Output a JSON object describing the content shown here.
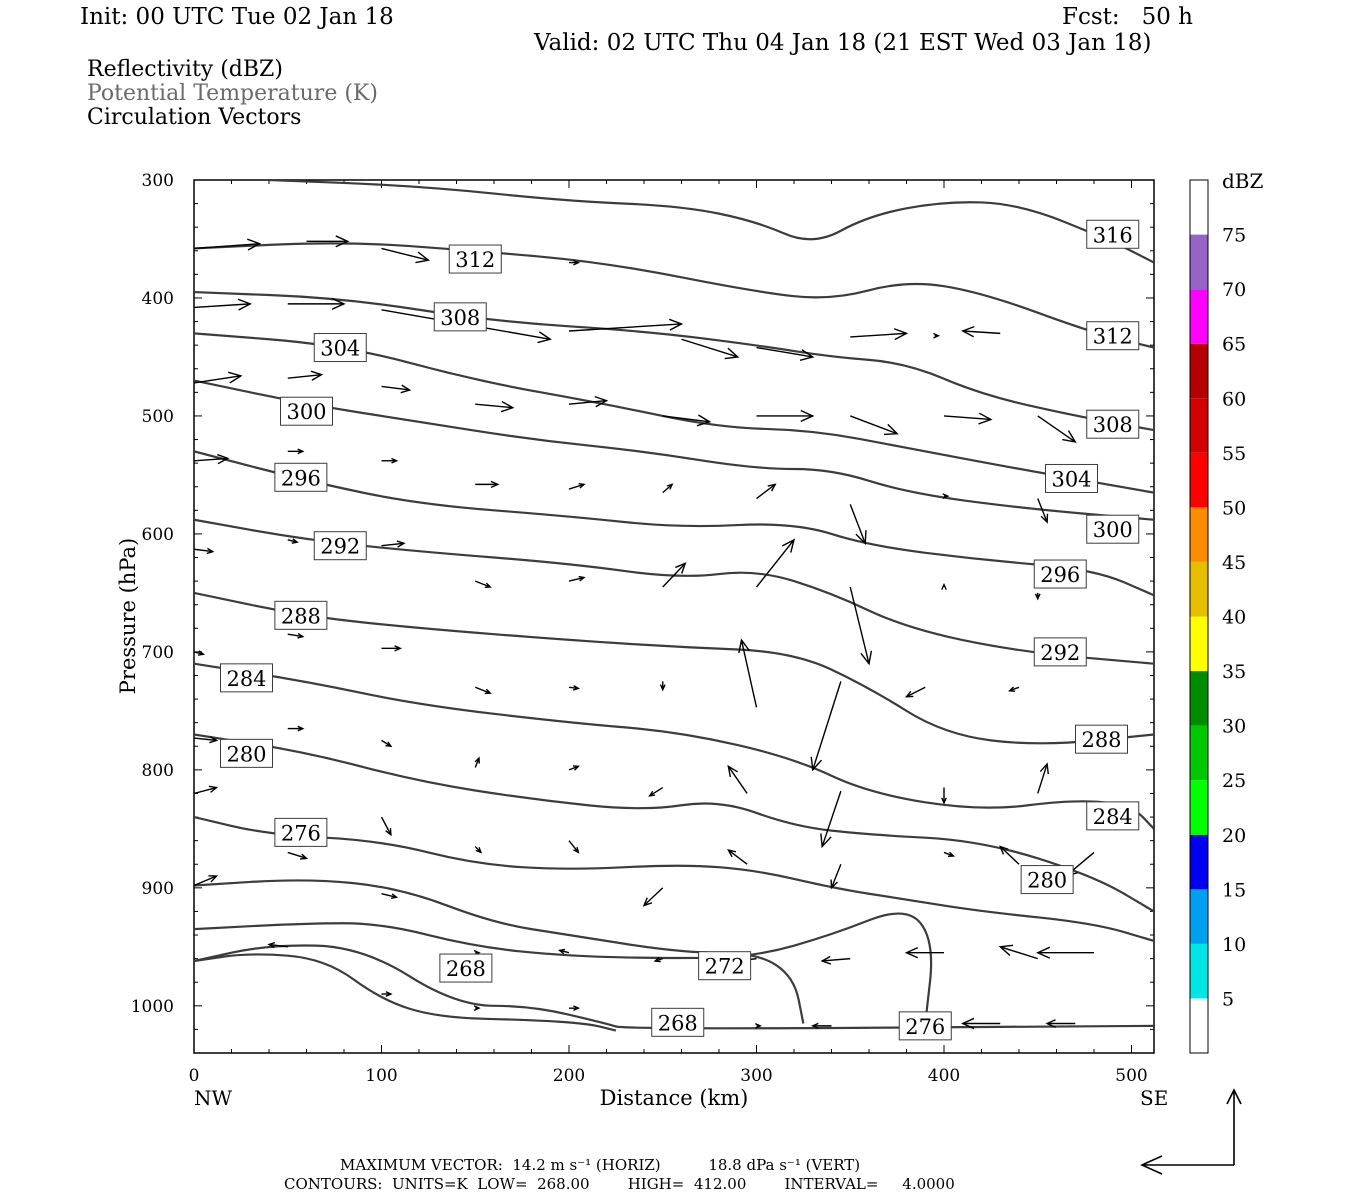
{
  "header": {
    "init": "Init: 00 UTC Tue 02 Jan 18",
    "fcst": "Fcst:   50 h",
    "valid": "Valid: 02 UTC Thu 04 Jan 18 (21 EST Wed 03 Jan 18)"
  },
  "legend": {
    "line1": "Reflectivity (dBZ)",
    "line2": "Potential Temperature (K)",
    "line3": "Circulation Vectors"
  },
  "footer": {
    "line1": "MAXIMUM VECTOR:  14.2 m s⁻¹ (HORIZ)          18.8 dPa s⁻¹ (VERT)",
    "line2": "CONTOURS:  UNITS=K  LOW=  268.00        HIGH=  412.00        INTERVAL=     4.0000"
  },
  "colors": {
    "contour": "#3c3c3c",
    "vector": "#000000",
    "axis": "#000000"
  },
  "chart_data": {
    "type": "contour",
    "xlabel": "Distance (km)",
    "ylabel": "Pressure (hPa)",
    "xlim": [
      0,
      512
    ],
    "ylim": [
      1040,
      300
    ],
    "xticks": [
      0,
      100,
      200,
      300,
      400,
      500
    ],
    "yticks": [
      300,
      400,
      500,
      600,
      700,
      800,
      900,
      1000
    ],
    "x_endpoints": {
      "left": "NW",
      "right": "SE"
    },
    "colorbar": {
      "title": "dBZ",
      "ticks": [
        5,
        10,
        15,
        20,
        25,
        30,
        35,
        40,
        45,
        50,
        55,
        60,
        65,
        70,
        75
      ],
      "colors": [
        "#ffffff",
        "#00e6e6",
        "#00a0f0",
        "#0000f0",
        "#00ff00",
        "#00c800",
        "#008c00",
        "#ffff00",
        "#e6be00",
        "#ff8c00",
        "#ff0000",
        "#d20000",
        "#b40000",
        "#ff00ff",
        "#9664c8",
        "#ffffff"
      ]
    },
    "isentropes": [
      {
        "theta": 316,
        "points": [
          [
            40,
            300
          ],
          [
            120,
            305
          ],
          [
            200,
            318
          ],
          [
            260,
            322
          ],
          [
            300,
            335
          ],
          [
            330,
            356
          ],
          [
            360,
            330
          ],
          [
            400,
            318
          ],
          [
            440,
            320
          ],
          [
            490,
            352
          ],
          [
            512,
            370
          ]
        ]
      },
      {
        "theta": 312,
        "points": [
          [
            0,
            358
          ],
          [
            80,
            352
          ],
          [
            150,
            360
          ],
          [
            220,
            370
          ],
          [
            300,
            395
          ],
          [
            340,
            402
          ],
          [
            380,
            385
          ],
          [
            420,
            395
          ],
          [
            480,
            430
          ],
          [
            512,
            442
          ]
        ]
      },
      {
        "theta": 308,
        "points": [
          [
            0,
            395
          ],
          [
            80,
            400
          ],
          [
            160,
            420
          ],
          [
            240,
            428
          ],
          [
            300,
            440
          ],
          [
            340,
            450
          ],
          [
            380,
            455
          ],
          [
            420,
            482
          ],
          [
            470,
            500
          ],
          [
            512,
            512
          ]
        ]
      },
      {
        "theta": 304,
        "points": [
          [
            0,
            430
          ],
          [
            80,
            440
          ],
          [
            150,
            470
          ],
          [
            220,
            490
          ],
          [
            280,
            510
          ],
          [
            330,
            512
          ],
          [
            380,
            527
          ],
          [
            440,
            545
          ],
          [
            512,
            565
          ]
        ]
      },
      {
        "theta": 300,
        "points": [
          [
            0,
            470
          ],
          [
            60,
            490
          ],
          [
            120,
            505
          ],
          [
            180,
            520
          ],
          [
            240,
            530
          ],
          [
            300,
            545
          ],
          [
            340,
            545
          ],
          [
            380,
            565
          ],
          [
            440,
            578
          ],
          [
            512,
            588
          ]
        ]
      },
      {
        "theta": 296,
        "points": [
          [
            0,
            530
          ],
          [
            60,
            555
          ],
          [
            120,
            575
          ],
          [
            200,
            585
          ],
          [
            260,
            595
          ],
          [
            320,
            590
          ],
          [
            360,
            610
          ],
          [
            420,
            622
          ],
          [
            480,
            630
          ],
          [
            512,
            652
          ]
        ]
      },
      {
        "theta": 292,
        "points": [
          [
            0,
            588
          ],
          [
            60,
            605
          ],
          [
            120,
            615
          ],
          [
            200,
            625
          ],
          [
            260,
            638
          ],
          [
            300,
            630
          ],
          [
            340,
            650
          ],
          [
            380,
            680
          ],
          [
            440,
            700
          ],
          [
            512,
            710
          ]
        ]
      },
      {
        "theta": 288,
        "points": [
          [
            0,
            650
          ],
          [
            60,
            670
          ],
          [
            120,
            680
          ],
          [
            200,
            690
          ],
          [
            260,
            696
          ],
          [
            320,
            700
          ],
          [
            360,
            730
          ],
          [
            400,
            770
          ],
          [
            450,
            780
          ],
          [
            512,
            770
          ]
        ]
      },
      {
        "theta": 284,
        "points": [
          [
            0,
            710
          ],
          [
            60,
            725
          ],
          [
            120,
            745
          ],
          [
            200,
            760
          ],
          [
            260,
            768
          ],
          [
            320,
            790
          ],
          [
            360,
            820
          ],
          [
            420,
            835
          ],
          [
            470,
            825
          ],
          [
            500,
            830
          ],
          [
            512,
            850
          ]
        ]
      },
      {
        "theta": 280,
        "points": [
          [
            0,
            770
          ],
          [
            60,
            785
          ],
          [
            120,
            810
          ],
          [
            180,
            825
          ],
          [
            240,
            835
          ],
          [
            280,
            825
          ],
          [
            320,
            848
          ],
          [
            360,
            855
          ],
          [
            420,
            860
          ],
          [
            480,
            890
          ],
          [
            512,
            920
          ]
        ]
      },
      {
        "theta": 276,
        "points": [
          [
            0,
            840
          ],
          [
            40,
            855
          ],
          [
            100,
            860
          ],
          [
            150,
            880
          ],
          [
            200,
            885
          ],
          [
            260,
            880
          ],
          [
            300,
            885
          ],
          [
            340,
            900
          ],
          [
            380,
            910
          ],
          [
            420,
            920
          ],
          [
            480,
            930
          ],
          [
            512,
            945
          ]
        ]
      },
      {
        "theta": 272,
        "points": [
          [
            0,
            898
          ],
          [
            60,
            892
          ],
          [
            110,
            900
          ],
          [
            160,
            930
          ],
          [
            200,
            940
          ],
          [
            260,
            955
          ],
          [
            300,
            955
          ],
          [
            320,
            975
          ],
          [
            325,
            1015
          ]
        ]
      },
      {
        "theta": 276,
        "points": [
          [
            0,
            935
          ],
          [
            60,
            930
          ],
          [
            100,
            930
          ],
          [
            150,
            950
          ],
          [
            200,
            958
          ],
          [
            260,
            960
          ],
          [
            300,
            958
          ],
          [
            340,
            940
          ],
          [
            380,
            915
          ],
          [
            395,
            945
          ],
          [
            390,
            1015
          ]
        ]
      },
      {
        "theta": 268,
        "points": [
          [
            0,
            962
          ],
          [
            40,
            948
          ],
          [
            90,
            950
          ],
          [
            140,
            1000
          ],
          [
            180,
            1000
          ],
          [
            220,
            1015
          ],
          [
            230,
            1020
          ],
          [
            512,
            1017
          ]
        ]
      },
      {
        "theta": 268,
        "points": [
          [
            0,
            962
          ],
          [
            30,
            955
          ],
          [
            70,
            960
          ],
          [
            100,
            995
          ],
          [
            130,
            1010
          ],
          [
            180,
            1012
          ],
          [
            210,
            1015
          ],
          [
            225,
            1021
          ]
        ]
      }
    ],
    "contour_labels": [
      {
        "text": "316",
        "x": 490,
        "y": 346
      },
      {
        "text": "312",
        "x": 150,
        "y": 367
      },
      {
        "text": "312",
        "x": 490,
        "y": 432
      },
      {
        "text": "308",
        "x": 142,
        "y": 416
      },
      {
        "text": "308",
        "x": 490,
        "y": 507
      },
      {
        "text": "304",
        "x": 78,
        "y": 442
      },
      {
        "text": "304",
        "x": 468,
        "y": 553
      },
      {
        "text": "300",
        "x": 60,
        "y": 496
      },
      {
        "text": "300",
        "x": 490,
        "y": 596
      },
      {
        "text": "296",
        "x": 57,
        "y": 552
      },
      {
        "text": "296",
        "x": 462,
        "y": 634
      },
      {
        "text": "292",
        "x": 78,
        "y": 610
      },
      {
        "text": "292",
        "x": 462,
        "y": 700
      },
      {
        "text": "288",
        "x": 57,
        "y": 669
      },
      {
        "text": "288",
        "x": 484,
        "y": 774
      },
      {
        "text": "284",
        "x": 28,
        "y": 722
      },
      {
        "text": "284",
        "x": 490,
        "y": 839
      },
      {
        "text": "280",
        "x": 28,
        "y": 786
      },
      {
        "text": "280",
        "x": 455,
        "y": 893
      },
      {
        "text": "276",
        "x": 57,
        "y": 853
      },
      {
        "text": "276",
        "x": 390,
        "y": 1017
      },
      {
        "text": "272",
        "x": 283,
        "y": 966
      },
      {
        "text": "268",
        "x": 145,
        "y": 968
      },
      {
        "text": "268",
        "x": 258,
        "y": 1014
      }
    ],
    "vectors": [
      [
        0,
        358,
        35,
        354
      ],
      [
        60,
        352,
        82,
        352
      ],
      [
        100,
        358,
        125,
        368
      ],
      [
        200,
        370,
        205,
        370
      ],
      [
        0,
        408,
        30,
        405
      ],
      [
        50,
        405,
        80,
        405
      ],
      [
        100,
        410,
        190,
        435
      ],
      [
        200,
        428,
        260,
        422
      ],
      [
        260,
        435,
        290,
        450
      ],
      [
        300,
        442,
        330,
        450
      ],
      [
        350,
        433,
        380,
        430
      ],
      [
        395,
        432,
        397,
        432
      ],
      [
        430,
        430,
        410,
        428
      ],
      [
        0,
        472,
        25,
        466
      ],
      [
        50,
        468,
        68,
        465
      ],
      [
        100,
        475,
        115,
        478
      ],
      [
        150,
        490,
        170,
        493
      ],
      [
        200,
        490,
        220,
        487
      ],
      [
        250,
        500,
        275,
        505
      ],
      [
        300,
        500,
        330,
        500
      ],
      [
        350,
        500,
        375,
        515
      ],
      [
        400,
        500,
        425,
        503
      ],
      [
        450,
        500,
        470,
        522
      ],
      [
        0,
        538,
        18,
        536
      ],
      [
        50,
        530,
        58,
        530
      ],
      [
        100,
        538,
        108,
        538
      ],
      [
        150,
        558,
        162,
        558
      ],
      [
        200,
        562,
        208,
        558
      ],
      [
        250,
        565,
        255,
        558
      ],
      [
        300,
        570,
        310,
        558
      ],
      [
        350,
        575,
        358,
        608
      ],
      [
        400,
        568,
        402,
        568
      ],
      [
        450,
        570,
        455,
        590
      ],
      [
        0,
        613,
        10,
        615
      ],
      [
        50,
        605,
        55,
        607
      ],
      [
        100,
        610,
        112,
        608
      ],
      [
        150,
        640,
        158,
        645
      ],
      [
        200,
        640,
        208,
        637
      ],
      [
        250,
        645,
        262,
        625
      ],
      [
        300,
        645,
        320,
        605
      ],
      [
        350,
        645,
        360,
        710
      ],
      [
        400,
        645,
        400,
        643
      ],
      [
        450,
        650,
        450,
        655
      ],
      [
        0,
        700,
        5,
        702
      ],
      [
        50,
        685,
        58,
        687
      ],
      [
        100,
        697,
        110,
        697
      ],
      [
        150,
        730,
        158,
        735
      ],
      [
        200,
        730,
        205,
        731
      ],
      [
        250,
        725,
        250,
        732
      ],
      [
        300,
        747,
        292,
        690
      ],
      [
        345,
        725,
        330,
        800
      ],
      [
        390,
        730,
        380,
        738
      ],
      [
        440,
        730,
        435,
        733
      ],
      [
        0,
        773,
        12,
        775
      ],
      [
        50,
        765,
        58,
        765
      ],
      [
        100,
        775,
        105,
        780
      ],
      [
        150,
        798,
        152,
        790
      ],
      [
        200,
        800,
        205,
        797
      ],
      [
        250,
        815,
        243,
        822
      ],
      [
        295,
        820,
        285,
        797
      ],
      [
        345,
        818,
        335,
        865
      ],
      [
        400,
        815,
        400,
        828
      ],
      [
        450,
        820,
        455,
        795
      ],
      [
        0,
        820,
        12,
        815
      ],
      [
        50,
        870,
        60,
        875
      ],
      [
        100,
        840,
        105,
        855
      ],
      [
        150,
        865,
        153,
        870
      ],
      [
        200,
        860,
        205,
        870
      ],
      [
        250,
        900,
        240,
        915
      ],
      [
        295,
        880,
        285,
        868
      ],
      [
        345,
        880,
        340,
        900
      ],
      [
        400,
        870,
        405,
        873
      ],
      [
        440,
        880,
        430,
        865
      ],
      [
        480,
        870,
        465,
        890
      ],
      [
        0,
        898,
        12,
        890
      ],
      [
        50,
        950,
        40,
        948
      ],
      [
        100,
        905,
        108,
        908
      ],
      [
        150,
        955,
        152,
        955
      ],
      [
        200,
        955,
        195,
        953
      ],
      [
        250,
        960,
        246,
        962
      ],
      [
        300,
        960,
        285,
        963
      ],
      [
        350,
        960,
        335,
        962
      ],
      [
        400,
        955,
        380,
        955
      ],
      [
        450,
        960,
        430,
        950
      ],
      [
        480,
        955,
        450,
        955
      ],
      [
        100,
        990,
        105,
        990
      ],
      [
        150,
        1002,
        152,
        1002
      ],
      [
        200,
        1002,
        205,
        1002
      ],
      [
        300,
        1017,
        302,
        1017
      ],
      [
        340,
        1017,
        330,
        1017
      ],
      [
        390,
        1017,
        380,
        1017
      ],
      [
        430,
        1015,
        410,
        1015
      ],
      [
        470,
        1015,
        455,
        1015
      ]
    ]
  }
}
